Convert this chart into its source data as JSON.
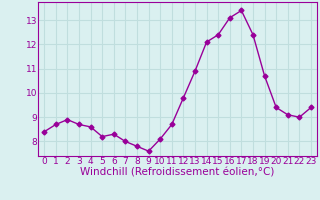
{
  "x": [
    0,
    1,
    2,
    3,
    4,
    5,
    6,
    7,
    8,
    9,
    10,
    11,
    12,
    13,
    14,
    15,
    16,
    17,
    18,
    19,
    20,
    21,
    22,
    23
  ],
  "y": [
    8.4,
    8.7,
    8.9,
    8.7,
    8.6,
    8.2,
    8.3,
    8.0,
    7.8,
    7.6,
    8.1,
    8.7,
    9.8,
    10.9,
    12.1,
    12.4,
    13.1,
    13.4,
    12.4,
    10.7,
    9.4,
    9.1,
    9.0,
    9.4
  ],
  "line_color": "#990099",
  "marker": "D",
  "markersize": 2.5,
  "linewidth": 1.0,
  "xlabel": "Windchill (Refroidissement éolien,°C)",
  "xlabel_fontsize": 7.5,
  "tick_fontsize": 6.5,
  "ylim": [
    7.4,
    13.75
  ],
  "yticks": [
    8,
    9,
    10,
    11,
    12,
    13
  ],
  "xticks": [
    0,
    1,
    2,
    3,
    4,
    5,
    6,
    7,
    8,
    9,
    10,
    11,
    12,
    13,
    14,
    15,
    16,
    17,
    18,
    19,
    20,
    21,
    22,
    23
  ],
  "bg_color": "#daf0f0",
  "grid_color": "#c0dede",
  "axis_label_color": "#990099",
  "tick_color": "#990099",
  "spine_color": "#990099"
}
